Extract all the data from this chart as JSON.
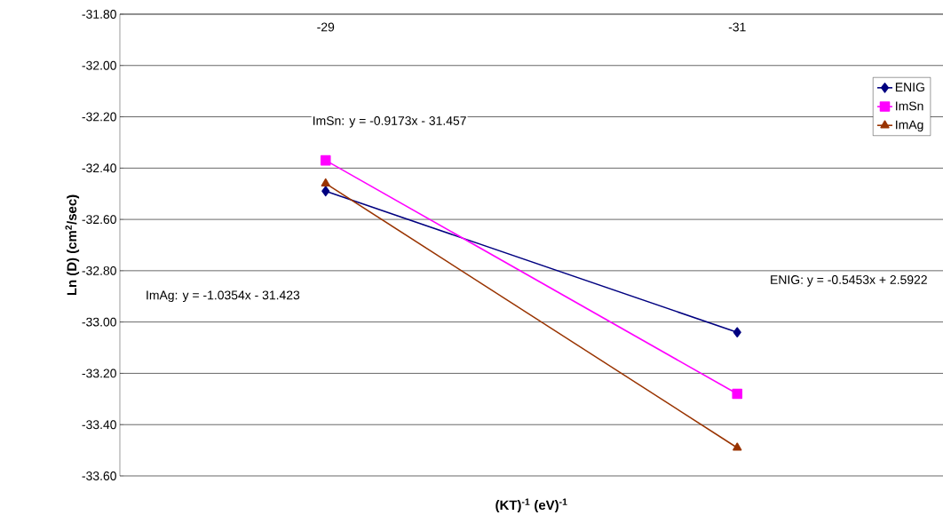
{
  "chart_data": {
    "type": "line",
    "xlabel": "(KT)$^{-1}$ (eV)$^{-1}$",
    "ylabel": "Ln (D) (cm$^{2}$/sec)",
    "x": [
      -29,
      -31
    ],
    "xlim": [
      -28,
      -32
    ],
    "xticks": [
      -29,
      -31
    ],
    "series": [
      {
        "name": "ENIG",
        "color": "#000080",
        "marker": "diamond",
        "values": [
          -32.49,
          -33.04
        ]
      },
      {
        "name": "ImSn",
        "color": "#ff00ff",
        "marker": "square",
        "values": [
          -32.37,
          -33.28
        ]
      },
      {
        "name": "ImAg",
        "color": "#993300",
        "marker": "triangle",
        "values": [
          -32.46,
          -33.49
        ]
      }
    ],
    "ylim": [
      -33.6,
      -31.8
    ],
    "yticks": [
      {
        "value": -33.6,
        "label": "-33.60"
      },
      {
        "value": -33.4,
        "label": "-33.40"
      },
      {
        "value": -33.2,
        "label": "-33.20"
      },
      {
        "value": -33.0,
        "label": "-33.00"
      },
      {
        "value": -32.8,
        "label": "-32.80"
      },
      {
        "value": -32.6,
        "label": "-32.60"
      },
      {
        "value": -32.4,
        "label": "-32.40"
      },
      {
        "value": -32.2,
        "label": "-32.20"
      },
      {
        "value": -32.0,
        "label": "-32.00"
      },
      {
        "value": -31.8,
        "label": "-31.80"
      }
    ],
    "grid": "y",
    "legend": "right",
    "annotations": [
      "ImSn: y = -0.9173x - 31.457",
      "ImAg: y = -1.0354x - 31.423",
      "ENIG: y = -0.5453x + 2.5922"
    ]
  }
}
